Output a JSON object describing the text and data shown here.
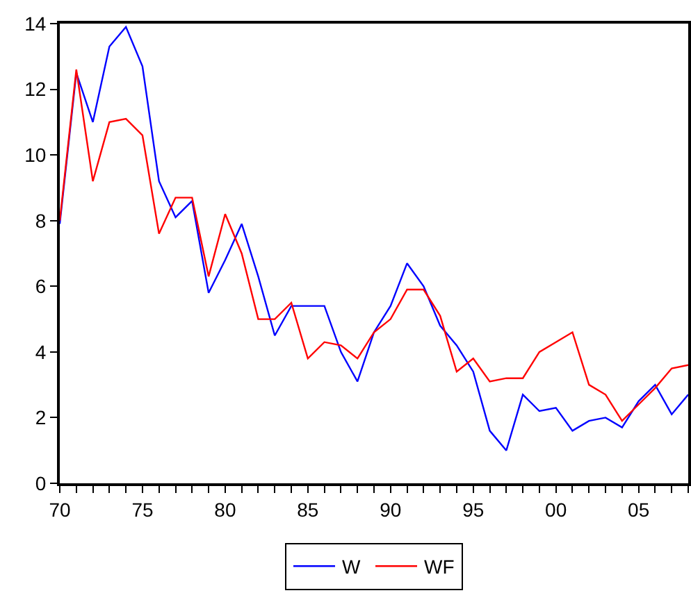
{
  "chart_data": {
    "type": "line",
    "x": [
      1970,
      1971,
      1972,
      1973,
      1974,
      1975,
      1976,
      1977,
      1978,
      1979,
      1980,
      1981,
      1982,
      1983,
      1984,
      1985,
      1986,
      1987,
      1988,
      1989,
      1990,
      1991,
      1992,
      1993,
      1994,
      1995,
      1996,
      1997,
      1998,
      1999,
      2000,
      2001,
      2002,
      2003,
      2004,
      2005,
      2006,
      2007,
      2008
    ],
    "series": [
      {
        "name": "W",
        "color": "#0000ff",
        "values": [
          7.9,
          12.5,
          11.0,
          13.3,
          13.9,
          12.7,
          9.2,
          8.1,
          8.6,
          5.8,
          6.8,
          7.9,
          6.3,
          4.5,
          5.4,
          5.4,
          5.4,
          4.0,
          3.1,
          4.6,
          5.4,
          6.7,
          6.0,
          4.8,
          4.2,
          3.4,
          1.6,
          1.0,
          2.7,
          2.2,
          2.3,
          1.6,
          1.9,
          2.0,
          1.7,
          2.5,
          3.0,
          2.1,
          2.7
        ]
      },
      {
        "name": "WF",
        "color": "#ff0000",
        "values": [
          8.0,
          12.6,
          9.2,
          11.0,
          11.1,
          10.6,
          7.6,
          8.7,
          8.7,
          6.3,
          8.2,
          7.0,
          5.0,
          5.0,
          5.5,
          3.8,
          4.3,
          4.2,
          3.8,
          4.6,
          5.0,
          5.9,
          5.9,
          5.1,
          3.4,
          3.8,
          3.1,
          3.2,
          3.2,
          4.0,
          4.3,
          4.6,
          3.0,
          2.7,
          1.9,
          2.4,
          2.9,
          3.5,
          3.6
        ]
      }
    ],
    "xlim": [
      1970,
      2008
    ],
    "xticks": [
      {
        "value": 1970,
        "label": "70"
      },
      {
        "value": 1971,
        "label": null
      },
      {
        "value": 1972,
        "label": null
      },
      {
        "value": 1973,
        "label": null
      },
      {
        "value": 1974,
        "label": null
      },
      {
        "value": 1975,
        "label": "75"
      },
      {
        "value": 1976,
        "label": null
      },
      {
        "value": 1977,
        "label": null
      },
      {
        "value": 1978,
        "label": null
      },
      {
        "value": 1979,
        "label": null
      },
      {
        "value": 1980,
        "label": "80"
      },
      {
        "value": 1981,
        "label": null
      },
      {
        "value": 1982,
        "label": null
      },
      {
        "value": 1983,
        "label": null
      },
      {
        "value": 1984,
        "label": null
      },
      {
        "value": 1985,
        "label": "85"
      },
      {
        "value": 1986,
        "label": null
      },
      {
        "value": 1987,
        "label": null
      },
      {
        "value": 1988,
        "label": null
      },
      {
        "value": 1989,
        "label": null
      },
      {
        "value": 1990,
        "label": "90"
      },
      {
        "value": 1991,
        "label": null
      },
      {
        "value": 1992,
        "label": null
      },
      {
        "value": 1993,
        "label": null
      },
      {
        "value": 1994,
        "label": null
      },
      {
        "value": 1995,
        "label": "95"
      },
      {
        "value": 1996,
        "label": null
      },
      {
        "value": 1997,
        "label": null
      },
      {
        "value": 1998,
        "label": null
      },
      {
        "value": 1999,
        "label": null
      },
      {
        "value": 2000,
        "label": "00"
      },
      {
        "value": 2001,
        "label": null
      },
      {
        "value": 2002,
        "label": null
      },
      {
        "value": 2003,
        "label": null
      },
      {
        "value": 2004,
        "label": null
      },
      {
        "value": 2005,
        "label": "05"
      },
      {
        "value": 2006,
        "label": null
      },
      {
        "value": 2007,
        "label": null
      },
      {
        "value": 2008,
        "label": null
      }
    ],
    "ylim": [
      0,
      14
    ],
    "yticks": [
      0,
      2,
      4,
      6,
      8,
      10,
      12,
      14
    ],
    "grid": false,
    "legend": "bottom",
    "marker": "none",
    "line_style": "solid"
  }
}
